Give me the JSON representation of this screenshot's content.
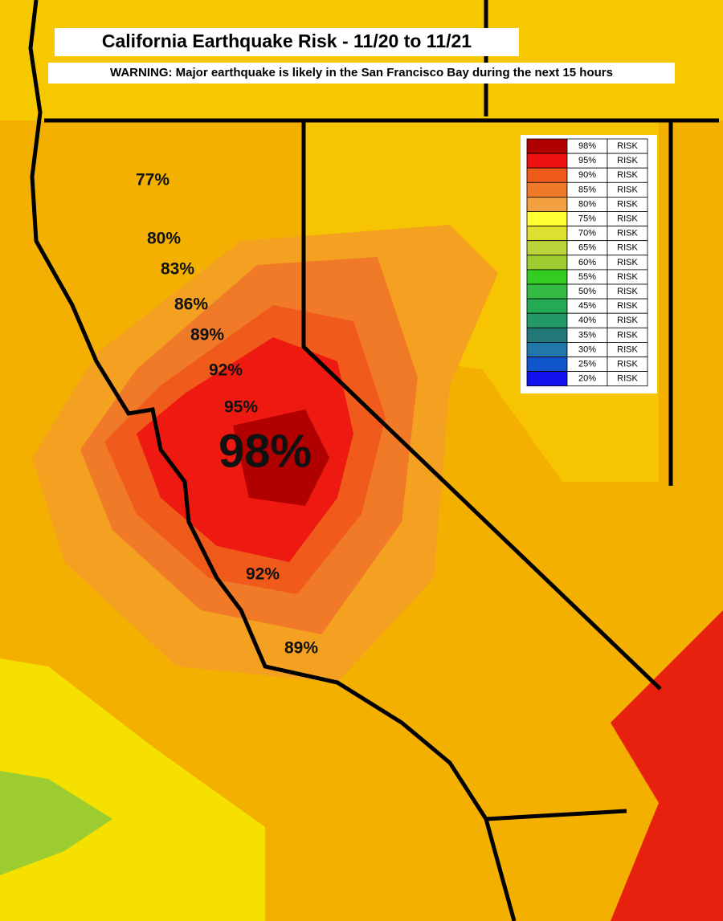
{
  "header": {
    "title": "California Earthquake Risk - 11/20 to 11/21",
    "warning": "WARNING: Major earthquake is likely in the San Francisco Bay during the next 15 hours"
  },
  "map_labels": [
    "77%",
    "80%",
    "83%",
    "86%",
    "89%",
    "92%",
    "95%",
    "98%",
    "92%",
    "89%"
  ],
  "legend": [
    {
      "color": "#b00000",
      "label": "98%",
      "text": "RISK"
    },
    {
      "color": "#ee1111",
      "label": "95%",
      "text": "RISK"
    },
    {
      "color": "#f05a1a",
      "label": "90%",
      "text": "RISK"
    },
    {
      "color": "#f07a28",
      "label": "85%",
      "text": "RISK"
    },
    {
      "color": "#f2a040",
      "label": "80%",
      "text": "RISK"
    },
    {
      "color": "#ffff33",
      "label": "75%",
      "text": "RISK"
    },
    {
      "color": "#dde030",
      "label": "70%",
      "text": "RISK"
    },
    {
      "color": "#bcd43a",
      "label": "65%",
      "text": "RISK"
    },
    {
      "color": "#9ccc30",
      "label": "60%",
      "text": "RISK"
    },
    {
      "color": "#33cc22",
      "label": "55%",
      "text": "RISK"
    },
    {
      "color": "#33bb44",
      "label": "50%",
      "text": "RISK"
    },
    {
      "color": "#22aa55",
      "label": "45%",
      "text": "RISK"
    },
    {
      "color": "#229966",
      "label": "40%",
      "text": "RISK"
    },
    {
      "color": "#227777",
      "label": "35%",
      "text": "RISK"
    },
    {
      "color": "#2277aa",
      "label": "30%",
      "text": "RISK"
    },
    {
      "color": "#1155cc",
      "label": "25%",
      "text": "RISK"
    },
    {
      "color": "#1111ee",
      "label": "20%",
      "text": "RISK"
    }
  ]
}
